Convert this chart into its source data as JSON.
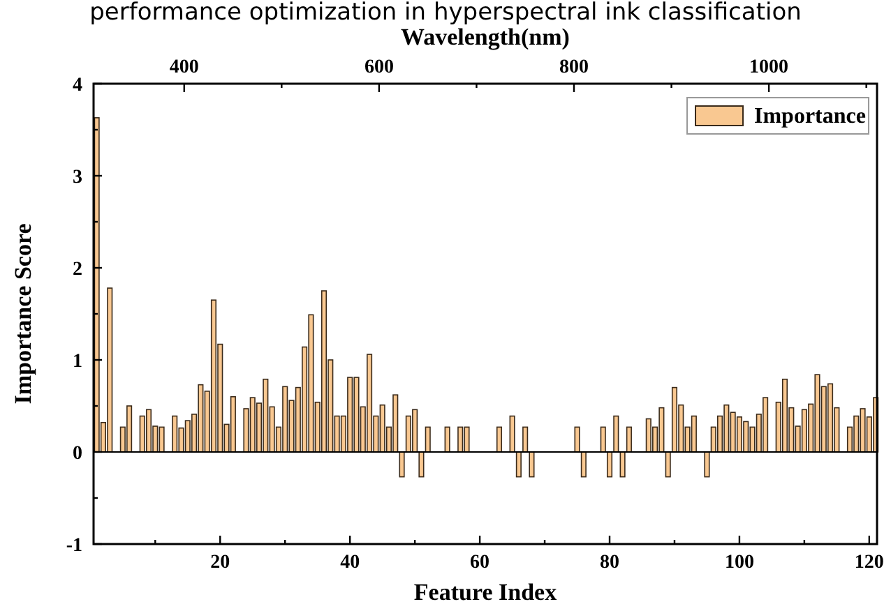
{
  "chart_data": {
    "type": "bar",
    "title": "performance optimization in hyperspectral ink classification",
    "xlabel": "Feature Index",
    "ylabel": "Importance Score",
    "x2label": "Wavelength(nm)",
    "series": [
      {
        "name": "Importance",
        "color": "#f9c891",
        "x": [
          1,
          2,
          3,
          5,
          6,
          8,
          9,
          10,
          11,
          13,
          14,
          15,
          16,
          17,
          18,
          19,
          20,
          21,
          22,
          24,
          25,
          26,
          27,
          28,
          29,
          30,
          31,
          32,
          33,
          34,
          35,
          36,
          37,
          38,
          39,
          40,
          41,
          42,
          43,
          44,
          45,
          46,
          47,
          48,
          49,
          50,
          51,
          52,
          55,
          57,
          58,
          63,
          65,
          66,
          67,
          68,
          75,
          76,
          79,
          80,
          81,
          82,
          83,
          86,
          87,
          88,
          89,
          90,
          91,
          92,
          93,
          95,
          96,
          97,
          98,
          99,
          100,
          101,
          102,
          103,
          104,
          106,
          107,
          108,
          109,
          110,
          111,
          112,
          113,
          114,
          115,
          117,
          118,
          119,
          120,
          121
        ],
        "values": [
          3.63,
          0.32,
          1.78,
          0.27,
          0.5,
          0.39,
          0.46,
          0.28,
          0.27,
          0.39,
          0.26,
          0.34,
          0.41,
          0.73,
          0.66,
          1.65,
          1.17,
          0.3,
          0.6,
          0.47,
          0.59,
          0.53,
          0.79,
          0.49,
          0.27,
          0.71,
          0.56,
          0.7,
          1.14,
          1.49,
          0.54,
          1.75,
          1.0,
          0.39,
          0.39,
          0.81,
          0.81,
          0.49,
          1.06,
          0.39,
          0.51,
          0.27,
          0.62,
          -0.27,
          0.39,
          0.46,
          -0.27,
          0.27,
          0.27,
          0.27,
          0.27,
          0.27,
          0.39,
          -0.27,
          0.27,
          -0.27,
          0.27,
          -0.27,
          0.27,
          -0.27,
          0.39,
          -0.27,
          0.27,
          0.36,
          0.27,
          0.48,
          -0.27,
          0.7,
          0.51,
          0.27,
          0.39,
          -0.27,
          0.27,
          0.39,
          0.51,
          0.43,
          0.38,
          0.33,
          0.27,
          0.41,
          0.59,
          0.54,
          0.79,
          0.48,
          0.28,
          0.46,
          0.52,
          0.84,
          0.71,
          0.74,
          0.48,
          0.27,
          0.39,
          0.47,
          0.38,
          0.59
        ]
      }
    ],
    "xlim": [
      0.5,
      121.2
    ],
    "xticks": [
      {
        "value": 10,
        "label": null
      },
      20,
      {
        "value": 30,
        "label": null
      },
      40,
      {
        "value": 50,
        "label": null
      },
      60,
      {
        "value": 70,
        "label": null
      },
      80,
      {
        "value": 90,
        "label": null
      },
      100,
      {
        "value": 110,
        "label": null
      },
      120
    ],
    "ylim": [
      -1,
      4
    ],
    "yticks": [
      -1,
      {
        "value": -0.5,
        "label": null
      },
      0,
      {
        "value": 0.5,
        "label": null
      },
      1,
      {
        "value": 1.5,
        "label": null
      },
      2,
      {
        "value": 2.5,
        "label": null
      },
      3,
      {
        "value": 3.5,
        "label": null
      },
      4
    ],
    "x2lim": [
      307,
      1111
    ],
    "x2ticks": [
      400,
      {
        "value": 500,
        "label": null
      },
      600,
      {
        "value": 700,
        "label": null
      },
      800,
      {
        "value": 900,
        "label": null
      },
      1000,
      {
        "value": 1100,
        "label": null
      }
    ],
    "ref_lines": [
      {
        "axis": "y",
        "value": 0
      }
    ],
    "legend": "top right"
  }
}
